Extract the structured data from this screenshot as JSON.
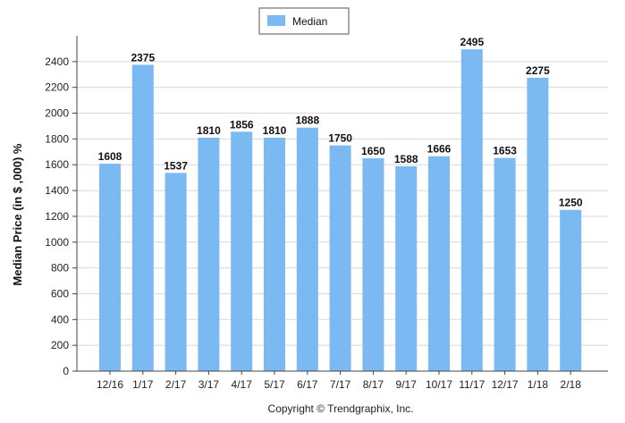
{
  "chart_data": {
    "type": "bar",
    "categories": [
      "12/16",
      "1/17",
      "2/17",
      "3/17",
      "4/17",
      "5/17",
      "6/17",
      "7/17",
      "8/17",
      "9/17",
      "10/17",
      "11/17",
      "12/17",
      "1/18",
      "2/18"
    ],
    "series": [
      {
        "name": "Median",
        "values": [
          1608,
          2375,
          1537,
          1810,
          1856,
          1810,
          1888,
          1750,
          1650,
          1588,
          1666,
          2495,
          1653,
          2275,
          1250
        ]
      }
    ],
    "data_labels": [
      "1608",
      "2375",
      "1537",
      "1810",
      "1856",
      "1810",
      "1888",
      "1750",
      "1650",
      "1588",
      "1666",
      "2495",
      "1653",
      "2275",
      "1250"
    ],
    "ylabel": "Median Price (in $ ,000) %",
    "xlabel": "",
    "ylim": [
      0,
      2600
    ],
    "yticks": [
      0,
      200,
      400,
      600,
      800,
      1000,
      1200,
      1400,
      1600,
      1800,
      2000,
      2200,
      2400
    ],
    "grid": true,
    "legend_position": "top-center",
    "bar_color": "#7ab9f2"
  },
  "footer": {
    "copyright": "Copyright © Trendgraphix, Inc."
  }
}
